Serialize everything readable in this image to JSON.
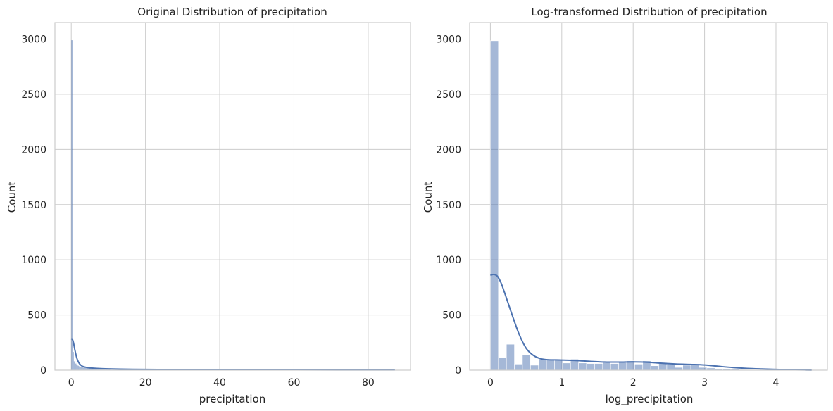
{
  "chart_data": [
    {
      "type": "bar",
      "title": "Original Distribution of precipitation",
      "xlabel": "precipitation",
      "ylabel": "Count",
      "xlim": [
        -4.4,
        91.4
      ],
      "ylim": [
        0,
        3150
      ],
      "xticks": [
        0,
        20,
        40,
        60,
        80
      ],
      "yticks": [
        0,
        500,
        1000,
        1500,
        2000,
        2500,
        3000
      ],
      "grid": true,
      "bins": {
        "start": 0,
        "width": 0.35
      },
      "counts": [
        2990,
        165,
        80,
        60,
        45,
        40,
        34,
        30,
        26,
        24,
        22,
        20,
        18,
        17,
        16,
        15,
        14,
        13,
        12,
        12,
        11,
        10,
        10,
        9,
        9,
        8,
        8,
        8,
        7,
        7
      ],
      "tail": {
        "x_end": 87.2,
        "height": 4
      },
      "kde": {
        "x": [
          0,
          0.3,
          0.6,
          1.0,
          1.5,
          2.0,
          2.5,
          3.0,
          4.0,
          5.0,
          7.0,
          10.0,
          15.0,
          20.0,
          30.0,
          40.0,
          60.0,
          87.2
        ],
        "y": [
          285,
          280,
          250,
          180,
          110,
          70,
          48,
          36,
          26,
          21,
          16,
          12,
          9,
          7,
          5,
          4,
          3,
          2
        ]
      }
    },
    {
      "type": "bar",
      "title": "Log-transformed Distribution of precipitation",
      "xlabel": "log_precipitation",
      "ylabel": "Count",
      "xlim": [
        -0.29,
        4.72
      ],
      "ylim": [
        0,
        3150
      ],
      "xticks": [
        0,
        1,
        2,
        3,
        4
      ],
      "yticks": [
        0,
        500,
        1000,
        1500,
        2000,
        2500,
        3000
      ],
      "grid": true,
      "bins": {
        "start": 0,
        "width": 0.1123
      },
      "counts": [
        2985,
        115,
        235,
        55,
        140,
        45,
        100,
        100,
        95,
        65,
        100,
        65,
        60,
        60,
        70,
        60,
        70,
        85,
        55,
        85,
        40,
        70,
        55,
        25,
        45,
        50,
        25,
        20,
        10,
        12,
        8,
        5,
        5,
        4,
        3,
        3,
        2,
        2,
        2,
        2
      ],
      "kde": {
        "x": [
          0,
          0.05,
          0.1,
          0.15,
          0.2,
          0.3,
          0.4,
          0.5,
          0.6,
          0.7,
          0.8,
          1.0,
          1.2,
          1.4,
          1.6,
          1.8,
          2.0,
          2.2,
          2.4,
          2.6,
          2.8,
          3.0,
          3.2,
          3.4,
          3.6,
          3.8,
          4.0,
          4.2,
          4.4,
          4.5
        ],
        "y": [
          860,
          868,
          850,
          790,
          700,
          510,
          330,
          200,
          135,
          105,
          95,
          92,
          88,
          80,
          74,
          73,
          75,
          72,
          63,
          56,
          52,
          47,
          35,
          24,
          16,
          11,
          7,
          4,
          2,
          1
        ]
      }
    }
  ]
}
